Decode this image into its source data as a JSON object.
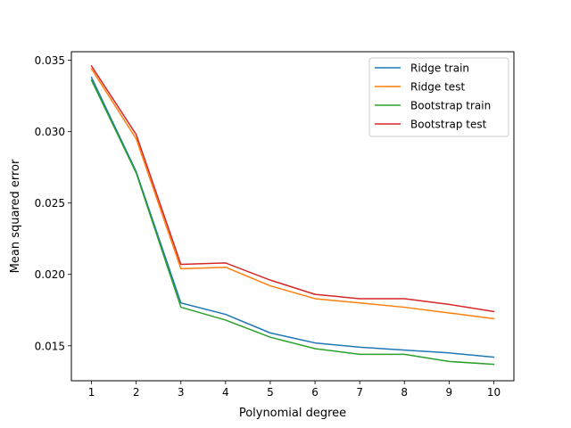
{
  "chart_data": {
    "type": "line",
    "title": "",
    "xlabel": "Polynomial degree",
    "ylabel": "Mean squared error",
    "x": [
      1,
      2,
      3,
      4,
      5,
      6,
      7,
      8,
      9,
      10
    ],
    "xlim": [
      0.55,
      10.45
    ],
    "ylim": [
      0.01255,
      0.0356
    ],
    "xticks": [
      "1",
      "2",
      "3",
      "4",
      "5",
      "6",
      "7",
      "8",
      "9",
      "10"
    ],
    "yticks": [
      0.015,
      0.02,
      0.025,
      0.03,
      0.035
    ],
    "ytick_labels": [
      "0.015",
      "0.020",
      "0.025",
      "0.030",
      "0.035"
    ],
    "grid": false,
    "legend_position": "top-right",
    "series": [
      {
        "name": "Ridge train",
        "color": "#1f77b4",
        "values": [
          0.0338,
          0.0272,
          0.018,
          0.0172,
          0.0159,
          0.0152,
          0.0149,
          0.0147,
          0.0145,
          0.0142
        ]
      },
      {
        "name": "Ridge test",
        "color": "#ff7f0e",
        "values": [
          0.0344,
          0.0295,
          0.0204,
          0.0205,
          0.0192,
          0.0183,
          0.018,
          0.0177,
          0.0173,
          0.0169
        ]
      },
      {
        "name": "Bootstrap train",
        "color": "#2ca02c",
        "values": [
          0.0336,
          0.0271,
          0.0177,
          0.0168,
          0.0156,
          0.0148,
          0.0144,
          0.0144,
          0.0139,
          0.0137
        ]
      },
      {
        "name": "Bootstrap test",
        "color": "#d62728",
        "values": [
          0.0346,
          0.0298,
          0.0207,
          0.0208,
          0.0196,
          0.0186,
          0.0183,
          0.0183,
          0.0179,
          0.0174
        ]
      }
    ]
  }
}
